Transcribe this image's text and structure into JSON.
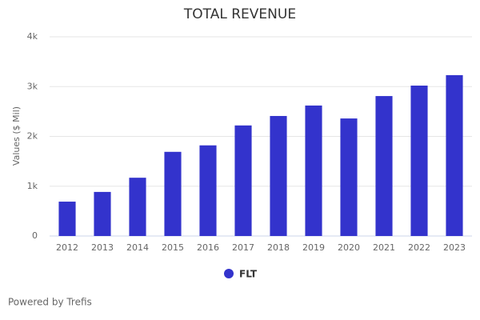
{
  "chart_data": {
    "type": "bar",
    "title": "TOTAL REVENUE",
    "y_label": "Values ($ Mil)",
    "categories": [
      "2012",
      "2013",
      "2014",
      "2015",
      "2016",
      "2017",
      "2018",
      "2019",
      "2020",
      "2021",
      "2022",
      "2023"
    ],
    "series": [
      {
        "name": "FLT",
        "color": "#3333cc",
        "values": [
          690,
          885,
          1170,
          1690,
          1820,
          2220,
          2410,
          2620,
          2360,
          2810,
          3020,
          3230
        ]
      }
    ],
    "ylim": [
      0,
      4000
    ],
    "yticks": [
      0,
      {
        "value": 1000,
        "label": "1k"
      },
      {
        "value": 2000,
        "label": "2k"
      },
      {
        "value": 3000,
        "label": "3k"
      },
      {
        "value": 4000,
        "label": "4k"
      }
    ],
    "grid": true
  },
  "footer": {
    "credit": "Powered by Trefis"
  }
}
